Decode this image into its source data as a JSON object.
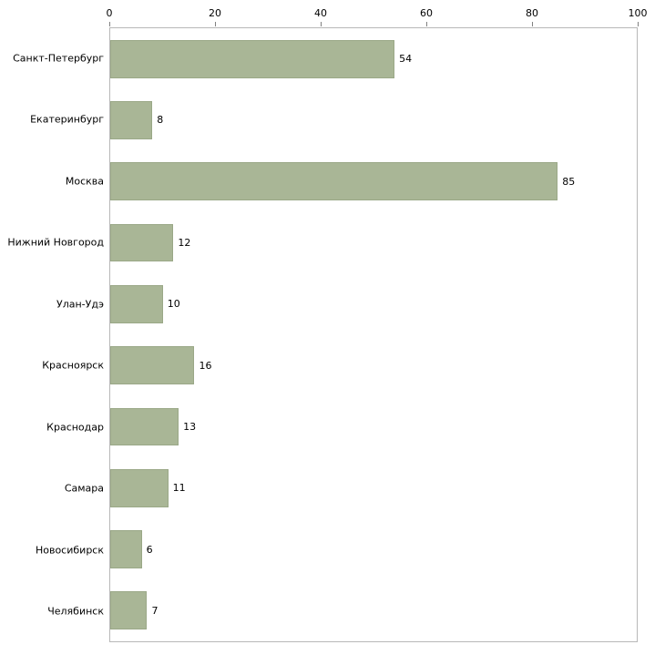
{
  "chart_data": {
    "type": "bar",
    "orientation": "horizontal",
    "title": "",
    "xlabel": "",
    "ylabel": "",
    "categories": [
      "Санкт-Петербург",
      "Екатеринбург",
      "Москва",
      "Нижний Новгород",
      "Улан-Удэ",
      "Красноярск",
      "Краснодар",
      "Самара",
      "Новосибирск",
      "Челябинск"
    ],
    "values": [
      54,
      8,
      85,
      12,
      10,
      16,
      13,
      11,
      6,
      7
    ],
    "xlim": [
      0,
      100
    ],
    "x_ticks": [
      0,
      20,
      40,
      60,
      80,
      100
    ],
    "axis_position": "top",
    "grid": false,
    "legend": false,
    "value_labels": true,
    "bar_color": "#a9b696",
    "bar_border_color": "#9aa887",
    "plot_border_color": "#b8b8b8",
    "background_color": "#ffffff"
  }
}
